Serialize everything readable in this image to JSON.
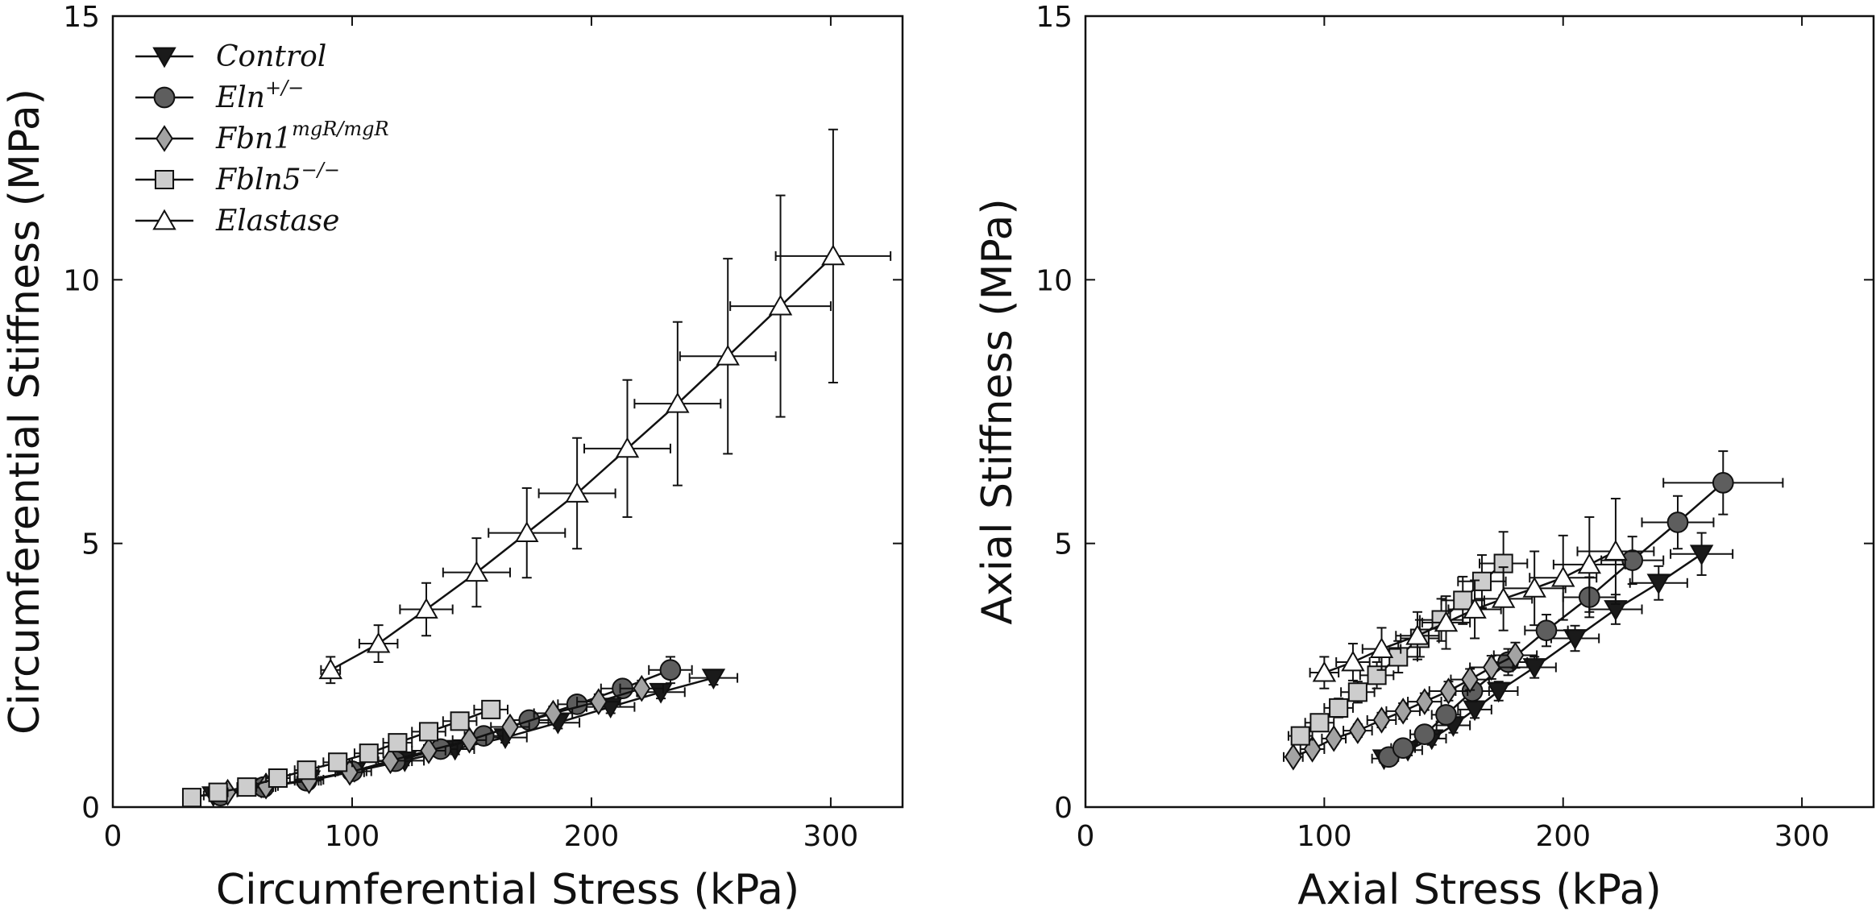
{
  "chart_data": [
    {
      "type": "scatter",
      "xlabel": "Circumferential Stress (kPa)",
      "ylabel": "Circumferential Stiffness (MPa)",
      "xlim": [
        0,
        330
      ],
      "ylim": [
        0,
        15
      ],
      "xticks": [
        "0",
        "100",
        "200",
        "300"
      ],
      "yticks": [
        "0",
        "5",
        "10",
        "15"
      ],
      "grid": false,
      "legend": "top-left",
      "series": [
        {
          "name": "Control",
          "sup": "",
          "marker": "triangle-down",
          "color": "#1a1a1a",
          "x": [
            42,
            62,
            82,
            101,
            122,
            143,
            164,
            186,
            208,
            229,
            251
          ],
          "y": [
            0.22,
            0.38,
            0.52,
            0.68,
            0.88,
            1.1,
            1.32,
            1.6,
            1.9,
            2.18,
            2.45
          ],
          "xerr": [
            4,
            5,
            6,
            7,
            8,
            8,
            9,
            9,
            10,
            10,
            10
          ],
          "yerr": [
            0.05,
            0.06,
            0.07,
            0.08,
            0.09,
            0.1,
            0.1,
            0.11,
            0.12,
            0.12,
            0.13
          ]
        },
        {
          "name": "Eln",
          "sup": "+/−",
          "marker": "circle",
          "color": "#5e5e5e",
          "x": [
            45,
            63,
            81,
            100,
            118,
            137,
            155,
            174,
            194,
            213,
            233
          ],
          "y": [
            0.22,
            0.38,
            0.5,
            0.68,
            0.87,
            1.1,
            1.35,
            1.65,
            1.95,
            2.25,
            2.6
          ],
          "xerr": [
            4,
            5,
            5,
            6,
            7,
            7,
            8,
            8,
            8,
            9,
            9
          ],
          "yerr": [
            0.05,
            0.06,
            0.07,
            0.08,
            0.09,
            0.1,
            0.11,
            0.12,
            0.13,
            0.15,
            0.25
          ]
        },
        {
          "name": "Fbn1",
          "sup": "mgR/mgR",
          "marker": "diamond",
          "color": "#a3a3a3",
          "x": [
            48,
            64,
            82,
            99,
            116,
            132,
            149,
            166,
            184,
            203,
            221
          ],
          "y": [
            0.28,
            0.4,
            0.5,
            0.66,
            0.88,
            1.07,
            1.27,
            1.52,
            1.78,
            2.0,
            2.25
          ],
          "xerr": [
            4,
            5,
            5,
            6,
            6,
            7,
            7,
            8,
            8,
            9,
            9
          ],
          "yerr": [
            0.05,
            0.06,
            0.07,
            0.08,
            0.09,
            0.1,
            0.11,
            0.12,
            0.13,
            0.14,
            0.15
          ]
        },
        {
          "name": "Fbln5",
          "sup": "−/−",
          "marker": "square",
          "color": "#cdcdcd",
          "x": [
            33,
            44,
            56,
            69,
            81,
            94,
            107,
            119,
            132,
            145,
            158
          ],
          "y": [
            0.18,
            0.28,
            0.38,
            0.55,
            0.7,
            0.85,
            1.02,
            1.22,
            1.43,
            1.63,
            1.85
          ],
          "xerr": [
            3,
            4,
            4,
            5,
            5,
            6,
            6,
            6,
            7,
            7,
            7
          ],
          "yerr": [
            0.04,
            0.05,
            0.06,
            0.07,
            0.08,
            0.1,
            0.11,
            0.12,
            0.13,
            0.14,
            0.16
          ]
        },
        {
          "name": "Elastase",
          "sup": "",
          "marker": "triangle-up",
          "color": "#ffffff",
          "x": [
            91,
            111,
            131,
            152,
            173,
            194,
            215,
            236,
            257,
            279,
            301
          ],
          "y": [
            2.6,
            3.1,
            3.75,
            4.45,
            5.2,
            5.95,
            6.8,
            7.65,
            8.55,
            9.5,
            10.45
          ],
          "xerr": [
            4,
            8,
            11,
            14,
            16,
            16,
            18,
            18,
            20,
            21,
            24
          ],
          "yerr": [
            0.25,
            0.35,
            0.5,
            0.65,
            0.85,
            1.05,
            1.3,
            1.55,
            1.85,
            2.1,
            2.4
          ]
        }
      ]
    },
    {
      "type": "scatter",
      "xlabel": "Axial Stress (kPa)",
      "ylabel": "Axial Stiffness (MPa)",
      "xlim": [
        0,
        330
      ],
      "ylim": [
        0,
        15
      ],
      "xticks": [
        "0",
        "100",
        "200",
        "300"
      ],
      "yticks": [
        "0",
        "5",
        "10",
        "15"
      ],
      "grid": false,
      "legend": "",
      "series": [
        {
          "name": "Control",
          "marker": "triangle-down",
          "color": "#1a1a1a",
          "x": [
            125,
            135,
            145,
            154,
            163,
            173,
            188,
            205,
            222,
            240,
            258
          ],
          "y": [
            0.92,
            1.08,
            1.3,
            1.55,
            1.85,
            2.2,
            2.65,
            3.2,
            3.75,
            4.25,
            4.8
          ],
          "xerr": [
            5,
            6,
            6,
            7,
            7,
            8,
            9,
            10,
            11,
            12,
            13
          ],
          "yerr": [
            0.08,
            0.1,
            0.12,
            0.14,
            0.16,
            0.18,
            0.2,
            0.24,
            0.28,
            0.32,
            0.4
          ]
        },
        {
          "name": "Eln",
          "marker": "circle",
          "color": "#5e5e5e",
          "x": [
            127,
            133,
            142,
            151,
            162,
            177,
            193,
            211,
            229,
            248,
            267
          ],
          "y": [
            0.95,
            1.12,
            1.38,
            1.75,
            2.2,
            2.75,
            3.35,
            3.98,
            4.68,
            5.4,
            6.15
          ],
          "xerr": [
            4,
            5,
            6,
            6,
            7,
            8,
            9,
            11,
            13,
            15,
            25
          ],
          "yerr": [
            0.08,
            0.1,
            0.12,
            0.15,
            0.2,
            0.25,
            0.3,
            0.38,
            0.45,
            0.5,
            0.6
          ]
        },
        {
          "name": "Fbn1",
          "marker": "diamond",
          "color": "#a3a3a3",
          "x": [
            87,
            95,
            104,
            114,
            124,
            133,
            142,
            152,
            161,
            170,
            180
          ],
          "y": [
            0.95,
            1.1,
            1.3,
            1.45,
            1.65,
            1.82,
            2.0,
            2.2,
            2.42,
            2.65,
            2.88
          ],
          "xerr": [
            4,
            5,
            5,
            6,
            6,
            7,
            7,
            8,
            8,
            9,
            9
          ],
          "yerr": [
            0.08,
            0.1,
            0.11,
            0.12,
            0.14,
            0.15,
            0.16,
            0.18,
            0.2,
            0.22,
            0.24
          ]
        },
        {
          "name": "Fbln5",
          "marker": "square",
          "color": "#cdcdcd",
          "x": [
            90,
            98,
            106,
            114,
            122,
            131,
            140,
            149,
            158,
            166,
            175
          ],
          "y": [
            1.35,
            1.6,
            1.88,
            2.18,
            2.5,
            2.85,
            3.2,
            3.55,
            3.92,
            4.28,
            4.62
          ],
          "xerr": [
            5,
            6,
            6,
            7,
            7,
            8,
            8,
            9,
            9,
            10,
            10
          ],
          "yerr": [
            0.12,
            0.15,
            0.18,
            0.2,
            0.25,
            0.3,
            0.35,
            0.4,
            0.45,
            0.5,
            0.6
          ]
        },
        {
          "name": "Elastase",
          "marker": "triangle-up",
          "color": "#ffffff",
          "x": [
            100,
            112,
            124,
            139,
            151,
            163,
            175,
            188,
            200,
            211,
            222
          ],
          "y": [
            2.55,
            2.75,
            3.0,
            3.25,
            3.5,
            3.75,
            3.95,
            4.15,
            4.35,
            4.6,
            4.85
          ],
          "xerr": [
            6,
            7,
            8,
            9,
            10,
            11,
            12,
            13,
            14,
            15,
            16
          ],
          "yerr": [
            0.3,
            0.35,
            0.4,
            0.45,
            0.5,
            0.55,
            0.6,
            0.7,
            0.8,
            0.9,
            1.0
          ]
        }
      ]
    }
  ]
}
